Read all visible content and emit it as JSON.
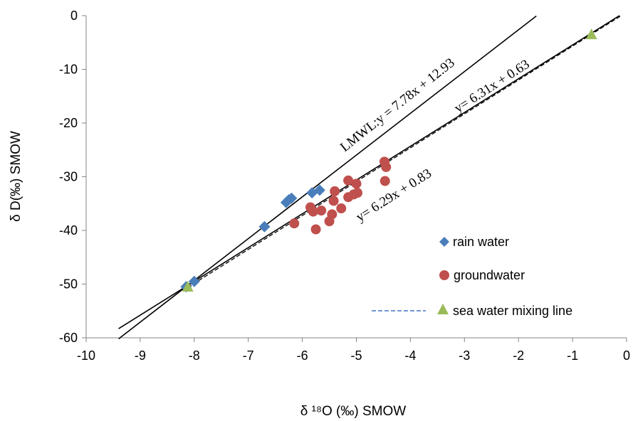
{
  "chart_data": {
    "type": "scatter",
    "xlabel": "δ ¹⁸O (‰) SMOW",
    "ylabel": "δ D(‰) SMOW",
    "xlim": [
      -10,
      0
    ],
    "ylim": [
      -60,
      0
    ],
    "x_ticks": [
      "-10",
      "-9",
      "-8",
      "-7",
      "-6",
      "-5",
      "-4",
      "-3",
      "-2",
      "-1",
      "0"
    ],
    "y_ticks": [
      "0",
      "-10",
      "-20",
      "-30",
      "-40",
      "-50",
      "-60"
    ],
    "grid": false,
    "legend_position": "bottom-right",
    "series": [
      {
        "name": "rain water",
        "marker": "diamond",
        "color": "#4A7EBB",
        "points": [
          {
            "x": -8.15,
            "y": -50.5
          },
          {
            "x": -8.0,
            "y": -49.5
          },
          {
            "x": -6.7,
            "y": -39.3
          },
          {
            "x": -6.3,
            "y": -34.8
          },
          {
            "x": -6.25,
            "y": -34.3
          },
          {
            "x": -6.2,
            "y": -34.0
          },
          {
            "x": -5.82,
            "y": -33.0
          },
          {
            "x": -5.68,
            "y": -32.5
          }
        ]
      },
      {
        "name": "groundwater",
        "marker": "circle",
        "color": "#C0504D",
        "points": [
          {
            "x": -6.15,
            "y": -38.7
          },
          {
            "x": -5.85,
            "y": -35.7
          },
          {
            "x": -5.8,
            "y": -36.5
          },
          {
            "x": -5.75,
            "y": -39.8
          },
          {
            "x": -5.65,
            "y": -36.3
          },
          {
            "x": -5.5,
            "y": -38.3
          },
          {
            "x": -5.45,
            "y": -37.0
          },
          {
            "x": -5.42,
            "y": -34.5
          },
          {
            "x": -5.4,
            "y": -32.7
          },
          {
            "x": -5.28,
            "y": -35.9
          },
          {
            "x": -5.15,
            "y": -33.8
          },
          {
            "x": -5.15,
            "y": -30.7
          },
          {
            "x": -5.05,
            "y": -33.3
          },
          {
            "x": -5.0,
            "y": -31.3
          },
          {
            "x": -4.98,
            "y": -33.0
          },
          {
            "x": -4.48,
            "y": -27.2
          },
          {
            "x": -4.45,
            "y": -28.2
          },
          {
            "x": -4.47,
            "y": -30.8
          }
        ]
      },
      {
        "name": "sea water mixing line",
        "marker": "triangle",
        "color": "#9BBB59",
        "line_style": "dashed",
        "line_color": "#4472C4",
        "points": [
          {
            "x": -8.12,
            "y": -50.6
          },
          {
            "x": -0.65,
            "y": -3.6
          }
        ]
      }
    ],
    "lines": [
      {
        "label": "LMWL:y = 7.78x + 12.93",
        "slope": 7.78,
        "intercept": 12.93,
        "x_range": [
          -9.4,
          -1.67
        ],
        "style": "solid"
      },
      {
        "label": "y= 6.29x + 0.83",
        "slope": 6.29,
        "intercept": 0.83,
        "x_range": [
          -9.4,
          -0.13
        ],
        "style": "solid"
      },
      {
        "label": "y= 6.31x + 0.63",
        "slope": 6.31,
        "intercept": 0.63,
        "x_range": [
          -8.12,
          -0.1
        ],
        "style": "dashed"
      }
    ]
  }
}
